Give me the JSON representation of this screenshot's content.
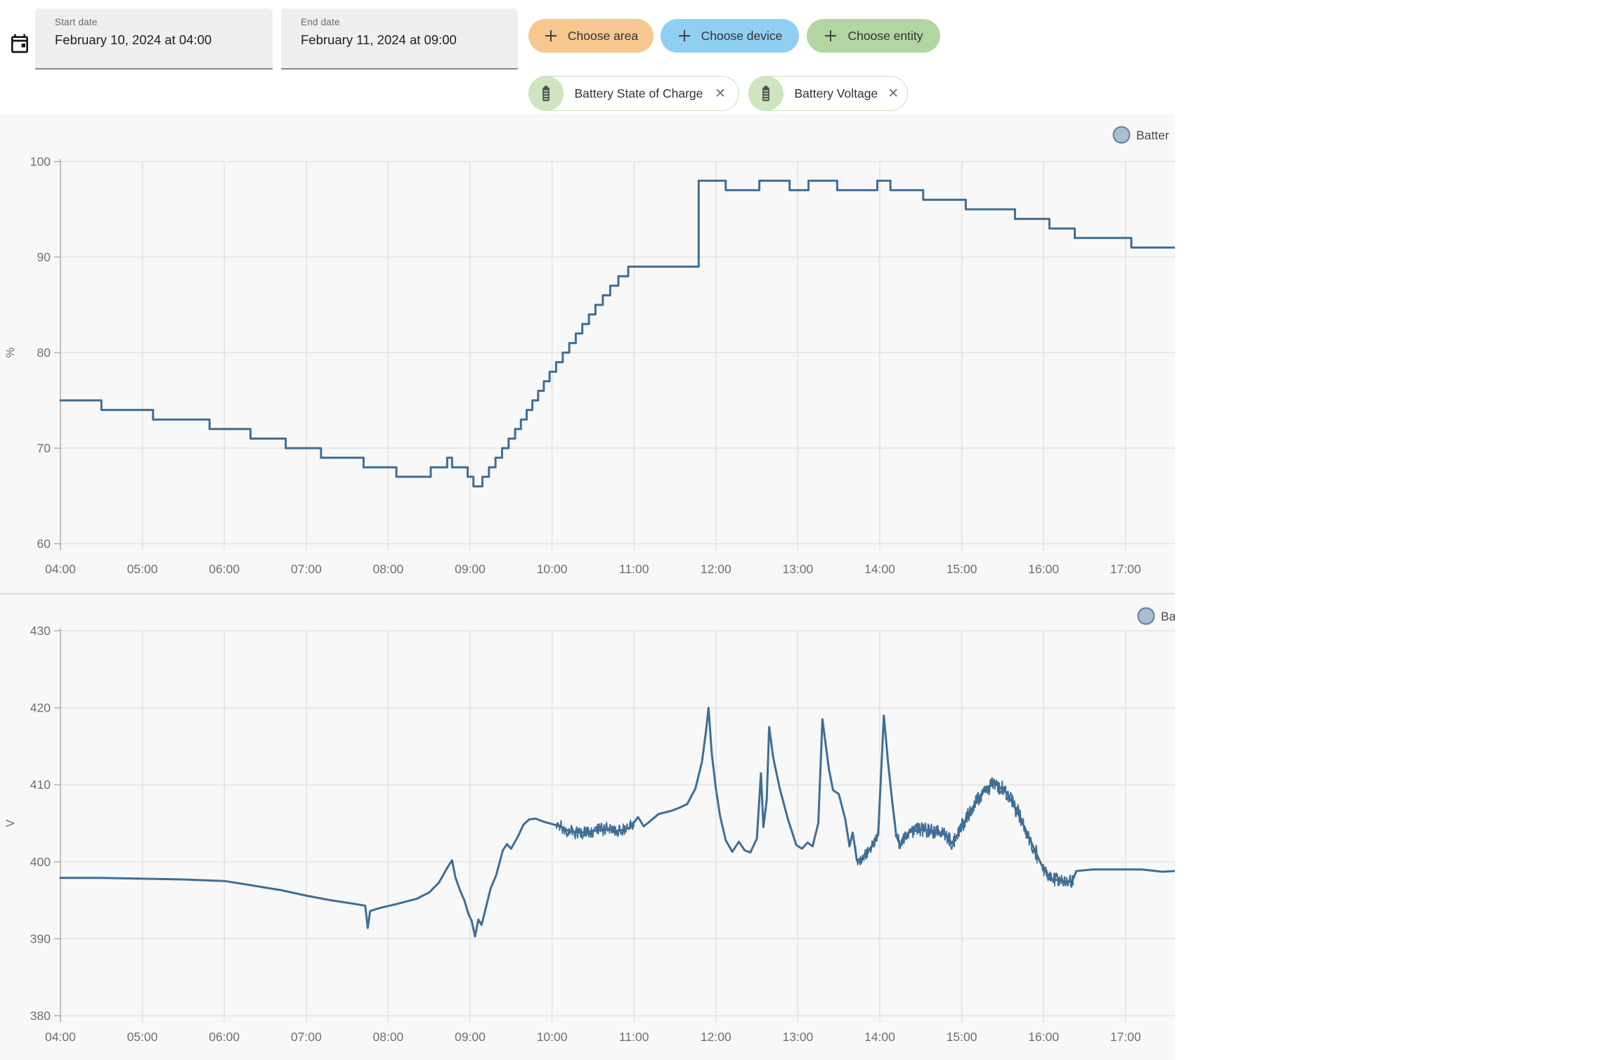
{
  "toolbar": {
    "start_field": {
      "label": "Start date",
      "value": "February 10, 2024 at 04:00"
    },
    "end_field": {
      "label": "End date",
      "value": "February 11, 2024 at 09:00"
    },
    "buttons": [
      {
        "label": "Choose area",
        "bg": "#f6c88f"
      },
      {
        "label": "Choose device",
        "bg": "#8fd0f2"
      },
      {
        "label": "Choose entity",
        "bg": "#b2d6a2"
      }
    ],
    "entity_chips": [
      {
        "label": "Battery State of Charge",
        "icon": "battery-icon",
        "close": "✕"
      },
      {
        "label": "Battery Voltage",
        "icon": "battery-icon",
        "close": "✕"
      }
    ]
  },
  "colors": {
    "line": "#3f6e96",
    "legend_fill": "#a9bdd3",
    "legend_stroke": "#637f9f",
    "grid": "#e3e3e3",
    "axis": "#afafaf",
    "tick_label": "#6f6f6f",
    "card_bg": "#f8f8f8",
    "divider": "#dcdcdc"
  },
  "chart_data": [
    {
      "type": "line",
      "name": "Battery State of Charge",
      "legend_label": "Batter",
      "ylabel": "%",
      "step": true,
      "ylim": [
        60,
        100
      ],
      "yticks": [
        100,
        90,
        80,
        70,
        60
      ],
      "x_start_hour": 4,
      "xticks": [
        "04:00",
        "05:00",
        "06:00",
        "07:00",
        "08:00",
        "09:00",
        "10:00",
        "11:00",
        "12:00",
        "13:00",
        "14:00",
        "15:00",
        "16:00",
        "17:00"
      ],
      "points": [
        [
          4.0,
          75
        ],
        [
          4.5,
          74
        ],
        [
          5.13,
          73
        ],
        [
          5.82,
          72
        ],
        [
          6.32,
          71
        ],
        [
          6.75,
          70
        ],
        [
          7.18,
          69
        ],
        [
          7.7,
          68
        ],
        [
          8.1,
          67
        ],
        [
          8.52,
          68
        ],
        [
          8.72,
          69
        ],
        [
          8.78,
          68
        ],
        [
          8.97,
          67
        ],
        [
          9.04,
          66
        ],
        [
          9.15,
          67
        ],
        [
          9.23,
          68
        ],
        [
          9.31,
          69
        ],
        [
          9.39,
          70
        ],
        [
          9.47,
          71
        ],
        [
          9.55,
          72
        ],
        [
          9.62,
          73
        ],
        [
          9.69,
          74
        ],
        [
          9.76,
          75
        ],
        [
          9.83,
          76
        ],
        [
          9.9,
          77
        ],
        [
          9.97,
          78
        ],
        [
          10.05,
          79
        ],
        [
          10.13,
          80
        ],
        [
          10.21,
          81
        ],
        [
          10.29,
          82
        ],
        [
          10.37,
          83
        ],
        [
          10.45,
          84
        ],
        [
          10.53,
          85
        ],
        [
          10.62,
          86
        ],
        [
          10.71,
          87
        ],
        [
          10.81,
          88
        ],
        [
          10.93,
          89
        ],
        [
          11.79,
          98
        ],
        [
          12.12,
          97
        ],
        [
          12.53,
          98
        ],
        [
          12.9,
          97
        ],
        [
          13.13,
          98
        ],
        [
          13.48,
          97
        ],
        [
          13.97,
          98
        ],
        [
          14.13,
          97
        ],
        [
          14.53,
          96
        ],
        [
          15.05,
          95
        ],
        [
          15.65,
          94
        ],
        [
          16.07,
          93
        ],
        [
          16.38,
          92
        ],
        [
          17.07,
          91
        ],
        [
          17.6,
          91
        ]
      ]
    },
    {
      "type": "line",
      "name": "Battery Voltage",
      "legend_label": "Ba",
      "ylabel": "V",
      "step": false,
      "ylim": [
        380,
        430
      ],
      "yticks": [
        430,
        420,
        410,
        400,
        390,
        380
      ],
      "x_start_hour": 4,
      "xticks": [
        "04:00",
        "05:00",
        "06:00",
        "07:00",
        "08:00",
        "09:00",
        "10:00",
        "11:00",
        "12:00",
        "13:00",
        "14:00",
        "15:00",
        "16:00",
        "17:00"
      ],
      "noise_spans": [
        [
          10.05,
          11.0,
          0.9
        ],
        [
          13.7,
          14.02,
          0.8
        ],
        [
          14.17,
          14.95,
          1.0
        ],
        [
          14.95,
          15.92,
          1.1
        ],
        [
          15.98,
          16.36,
          0.9
        ]
      ],
      "points": [
        [
          4.0,
          397.9
        ],
        [
          4.5,
          397.9
        ],
        [
          5.0,
          397.8
        ],
        [
          5.5,
          397.7
        ],
        [
          6.0,
          397.5
        ],
        [
          6.3,
          397.0
        ],
        [
          6.7,
          396.3
        ],
        [
          7.0,
          395.6
        ],
        [
          7.3,
          395.0
        ],
        [
          7.55,
          394.6
        ],
        [
          7.72,
          394.3
        ],
        [
          7.75,
          391.4
        ],
        [
          7.78,
          393.6
        ],
        [
          7.9,
          394.0
        ],
        [
          8.1,
          394.5
        ],
        [
          8.35,
          395.2
        ],
        [
          8.5,
          396.0
        ],
        [
          8.62,
          397.3
        ],
        [
          8.72,
          399.2
        ],
        [
          8.78,
          400.2
        ],
        [
          8.82,
          398.0
        ],
        [
          8.88,
          396.2
        ],
        [
          8.93,
          395.0
        ],
        [
          8.98,
          393.2
        ],
        [
          9.02,
          392.3
        ],
        [
          9.06,
          390.3
        ],
        [
          9.1,
          392.5
        ],
        [
          9.14,
          391.8
        ],
        [
          9.18,
          393.5
        ],
        [
          9.25,
          396.5
        ],
        [
          9.32,
          398.3
        ],
        [
          9.4,
          401.5
        ],
        [
          9.45,
          402.3
        ],
        [
          9.5,
          401.7
        ],
        [
          9.58,
          403.2
        ],
        [
          9.65,
          404.8
        ],
        [
          9.72,
          405.5
        ],
        [
          9.8,
          405.6
        ],
        [
          9.9,
          405.2
        ],
        [
          10.0,
          404.9
        ],
        [
          10.1,
          404.6
        ],
        [
          10.2,
          404.0
        ],
        [
          10.35,
          403.8
        ],
        [
          10.5,
          404.0
        ],
        [
          10.65,
          404.2
        ],
        [
          10.8,
          404.0
        ],
        [
          10.95,
          404.4
        ],
        [
          11.05,
          405.8
        ],
        [
          11.12,
          404.6
        ],
        [
          11.2,
          405.3
        ],
        [
          11.3,
          406.2
        ],
        [
          11.45,
          406.6
        ],
        [
          11.55,
          407.0
        ],
        [
          11.65,
          407.5
        ],
        [
          11.75,
          409.5
        ],
        [
          11.83,
          413.0
        ],
        [
          11.88,
          417.0
        ],
        [
          11.91,
          420.0
        ],
        [
          11.95,
          414.0
        ],
        [
          12.0,
          409.5
        ],
        [
          12.05,
          406.0
        ],
        [
          12.12,
          402.8
        ],
        [
          12.2,
          401.3
        ],
        [
          12.28,
          402.6
        ],
        [
          12.35,
          401.5
        ],
        [
          12.42,
          401.2
        ],
        [
          12.5,
          403.0
        ],
        [
          12.55,
          411.5
        ],
        [
          12.58,
          404.5
        ],
        [
          12.62,
          408.0
        ],
        [
          12.65,
          417.5
        ],
        [
          12.7,
          413.5
        ],
        [
          12.78,
          409.5
        ],
        [
          12.88,
          405.5
        ],
        [
          12.98,
          402.2
        ],
        [
          13.05,
          401.7
        ],
        [
          13.12,
          402.5
        ],
        [
          13.18,
          402.0
        ],
        [
          13.25,
          405.0
        ],
        [
          13.3,
          418.5
        ],
        [
          13.38,
          412.0
        ],
        [
          13.43,
          409.3
        ],
        [
          13.5,
          408.8
        ],
        [
          13.58,
          405.5
        ],
        [
          13.63,
          402.0
        ],
        [
          13.67,
          403.8
        ],
        [
          13.72,
          400.2
        ],
        [
          13.8,
          400.5
        ],
        [
          13.9,
          402.0
        ],
        [
          13.98,
          403.5
        ],
        [
          14.05,
          419.0
        ],
        [
          14.1,
          413.0
        ],
        [
          14.15,
          408.0
        ],
        [
          14.2,
          403.5
        ],
        [
          14.25,
          402.0
        ],
        [
          14.35,
          403.8
        ],
        [
          14.5,
          404.2
        ],
        [
          14.65,
          404.0
        ],
        [
          14.8,
          403.6
        ],
        [
          14.88,
          402.4
        ],
        [
          14.95,
          403.5
        ],
        [
          15.1,
          406.5
        ],
        [
          15.25,
          409.0
        ],
        [
          15.4,
          410.2
        ],
        [
          15.55,
          409.0
        ],
        [
          15.7,
          406.0
        ],
        [
          15.85,
          402.5
        ],
        [
          16.0,
          399.0
        ],
        [
          16.1,
          397.8
        ],
        [
          16.25,
          397.4
        ],
        [
          16.35,
          397.5
        ],
        [
          16.4,
          398.8
        ],
        [
          16.6,
          399.0
        ],
        [
          16.9,
          399.0
        ],
        [
          17.2,
          399.0
        ],
        [
          17.45,
          398.7
        ],
        [
          17.6,
          398.8
        ]
      ]
    }
  ]
}
